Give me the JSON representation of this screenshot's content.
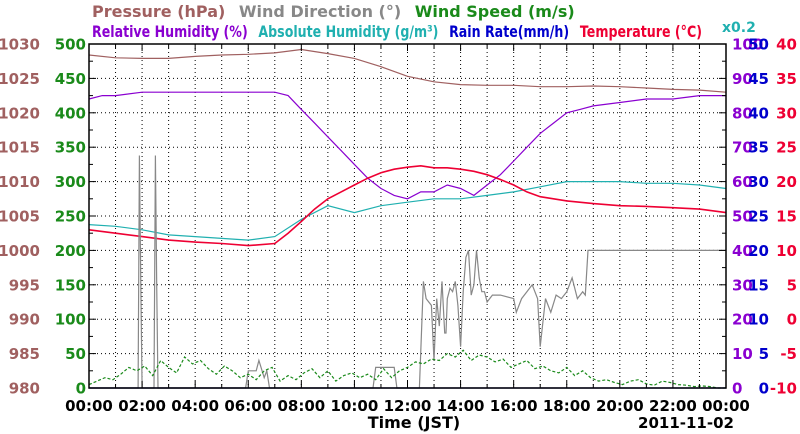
{
  "chart_data": {
    "type": "line",
    "date_label": "2011-11-02",
    "xlabel": "Time (JST)",
    "x_ticks": [
      "00:00",
      "02:00",
      "04:00",
      "06:00",
      "08:00",
      "10:00",
      "12:00",
      "14:00",
      "16:00",
      "18:00",
      "20:00",
      "22:00",
      "00:00"
    ],
    "xlim": [
      0,
      24
    ],
    "legend": {
      "row1": [
        {
          "id": "pressure",
          "text": "Pressure (hPa)",
          "color": "#a06060"
        },
        {
          "id": "wind_dir",
          "text": "Wind Direction (°)",
          "color": "#888888"
        },
        {
          "id": "wind_speed",
          "text": "Wind Speed (m/s)",
          "color": "#1a8a1a"
        }
      ],
      "row2": [
        {
          "id": "rh",
          "text": "Relative Humidity (%)",
          "color": "#8a00d0"
        },
        {
          "id": "ah",
          "text": "Absolute Humidity (g/m³)",
          "color": "#20b0b0"
        },
        {
          "id": "rain",
          "text": "Rain Rate(mm/h)",
          "color": "#0000cc"
        },
        {
          "id": "temp",
          "text": "Temperature (°C)",
          "color": "#ee0033"
        }
      ],
      "ah_factor": "x0.2"
    },
    "axes": {
      "pressure": {
        "ticks": [
          "1030",
          "1025",
          "1020",
          "1015",
          "1010",
          "1005",
          "1000",
          "995",
          "990",
          "985",
          "980"
        ],
        "ylim": [
          980,
          1030
        ],
        "color": "#a06060"
      },
      "wind_dir": {
        "ticks": [
          "500",
          "450",
          "400",
          "350",
          "300",
          "250",
          "200",
          "150",
          "100",
          "50",
          "0"
        ],
        "ylim": [
          0,
          500
        ],
        "color": "#1a8a1a"
      },
      "rh": {
        "ticks": [
          "100",
          "90",
          "80",
          "70",
          "60",
          "50",
          "40",
          "30",
          "20",
          "10",
          "0"
        ],
        "ylim": [
          0,
          100
        ],
        "color": "#8a00d0"
      },
      "rain": {
        "ticks": [
          "50",
          "45",
          "40",
          "35",
          "30",
          "25",
          "20",
          "15",
          "10",
          "5",
          "0"
        ],
        "ylim": [
          0,
          50
        ],
        "color": "#0000cc"
      },
      "temp": {
        "ticks": [
          "40",
          "35",
          "30",
          "25",
          "20",
          "15",
          "10",
          "5",
          "0",
          "-5",
          "-10"
        ],
        "ylim": [
          -10,
          40
        ],
        "color": "#ee0033"
      }
    },
    "series": [
      {
        "name": "Pressure (hPa)",
        "color": "#a06060",
        "axis": "pressure",
        "x": [
          0,
          1,
          2,
          3,
          4,
          5,
          6,
          7,
          8,
          9,
          10,
          11,
          12,
          13,
          14,
          15,
          16,
          17,
          18,
          19,
          20,
          21,
          22,
          23,
          24
        ],
        "y": [
          1028.4,
          1028.0,
          1027.9,
          1027.9,
          1028.2,
          1028.4,
          1028.5,
          1028.7,
          1029.2,
          1028.6,
          1027.9,
          1026.7,
          1025.3,
          1024.5,
          1024.1,
          1024.0,
          1024.0,
          1023.8,
          1023.8,
          1023.9,
          1023.8,
          1023.6,
          1023.4,
          1023.3,
          1023.0
        ]
      },
      {
        "name": "Relative Humidity (%)",
        "color": "#8a00d0",
        "axis": "rh",
        "x": [
          0,
          0.5,
          1,
          2,
          3,
          4,
          5,
          6,
          7,
          7.5,
          8,
          8.5,
          9,
          9.5,
          10,
          10.5,
          11,
          11.5,
          12,
          12.5,
          13,
          13.5,
          14,
          14.5,
          15,
          15.5,
          16,
          16.5,
          17,
          17.5,
          18,
          18.5,
          19,
          20,
          21,
          22,
          23,
          24
        ],
        "y": [
          84,
          85,
          85,
          86,
          86,
          86,
          86,
          86,
          86,
          85,
          81,
          77,
          73,
          69,
          65,
          61,
          58,
          56,
          55,
          57,
          57,
          59,
          58,
          56,
          59,
          62,
          66,
          70,
          74,
          77,
          80,
          81,
          82,
          83,
          84,
          84,
          85,
          85
        ]
      },
      {
        "name": "Absolute Humidity (g/m³)",
        "color": "#20b0b0",
        "axis": "rh",
        "x": [
          0,
          1,
          2,
          3,
          4,
          5,
          6,
          7,
          8,
          9,
          10,
          11,
          12,
          13,
          14,
          15,
          16,
          17,
          18,
          19,
          20,
          21,
          22,
          23,
          24
        ],
        "y": [
          47.5,
          47,
          46,
          44.5,
          44,
          43.5,
          43,
          44,
          49,
          53,
          51,
          53,
          54,
          55,
          55,
          56,
          57,
          58.5,
          60,
          60,
          60,
          59.5,
          59.5,
          59,
          58
        ]
      },
      {
        "name": "Temperature (°C)",
        "color": "#ee0033",
        "axis": "temp",
        "x": [
          0,
          1,
          2,
          3,
          4,
          5,
          6,
          7,
          7.5,
          8,
          8.5,
          9,
          9.5,
          10,
          10.5,
          11,
          11.5,
          12,
          12.5,
          13,
          13.5,
          14,
          14.5,
          15,
          15.5,
          16,
          16.5,
          17,
          17.5,
          18,
          19,
          20,
          21,
          22,
          23,
          24
        ],
        "y": [
          13,
          12.5,
          12,
          11.5,
          11.2,
          11.0,
          10.7,
          11.0,
          12.5,
          14.2,
          16.0,
          17.5,
          18.5,
          19.5,
          20.5,
          21.3,
          21.8,
          22.1,
          22.3,
          22.0,
          22.0,
          21.8,
          21.5,
          21.0,
          20.3,
          19.5,
          18.5,
          17.8,
          17.5,
          17.2,
          16.8,
          16.5,
          16.4,
          16.2,
          16.0,
          15.5
        ]
      },
      {
        "name": "Wind Direction (°)",
        "color": "#888888",
        "axis": "wind_dir",
        "x": [
          0,
          1.8,
          1.85,
          1.9,
          1.95,
          2.0,
          2.4,
          2.45,
          2.5,
          2.55,
          2.6,
          2.7,
          5.9,
          6.0,
          6.3,
          6.4,
          6.6,
          6.7,
          6.8,
          6.9,
          7.0,
          10.0,
          10.1,
          10.7,
          10.8,
          11.5,
          11.6,
          12.4,
          12.45,
          12.6,
          12.7,
          12.9,
          13.0,
          13.1,
          13.2,
          13.3,
          13.4,
          13.45,
          13.5,
          13.6,
          13.7,
          13.8,
          13.9,
          14.0,
          14.1,
          14.2,
          14.3,
          14.4,
          14.5,
          14.6,
          14.7,
          14.8,
          14.9,
          15.0,
          15.2,
          15.5,
          16.0,
          16.1,
          16.3,
          16.5,
          16.7,
          16.9,
          17.0,
          17.2,
          17.4,
          17.6,
          17.8,
          18.0,
          18.2,
          18.4,
          18.6,
          18.7,
          18.8,
          24
        ],
        "y": [
          0,
          0,
          0,
          338,
          150,
          0,
          0,
          0,
          338,
          150,
          0,
          0,
          0,
          25,
          25,
          40,
          15,
          25,
          0,
          0,
          0,
          0,
          0,
          0,
          30,
          30,
          0,
          0,
          0,
          155,
          130,
          120,
          40,
          130,
          90,
          155,
          80,
          80,
          130,
          145,
          140,
          155,
          120,
          60,
          140,
          190,
          200,
          135,
          150,
          200,
          160,
          140,
          140,
          125,
          135,
          135,
          130,
          110,
          130,
          140,
          150,
          130,
          60,
          130,
          110,
          135,
          130,
          140,
          160,
          130,
          140,
          135,
          200,
          200
        ]
      },
      {
        "name": "Wind Speed (m/s)",
        "color": "#1a8a1a",
        "axis": "wind_dir",
        "dash": true,
        "x": [
          0,
          0.3,
          0.6,
          0.9,
          1.2,
          1.5,
          1.8,
          2.1,
          2.4,
          2.7,
          3.0,
          3.3,
          3.6,
          3.9,
          4.2,
          4.5,
          4.8,
          5.1,
          5.4,
          5.7,
          6.0,
          6.3,
          6.6,
          6.9,
          7.2,
          7.5,
          7.8,
          8.1,
          8.4,
          8.7,
          9.0,
          9.3,
          9.6,
          9.9,
          10.2,
          10.5,
          10.8,
          11.1,
          11.4,
          11.7,
          12.0,
          12.3,
          12.6,
          12.9,
          13.2,
          13.5,
          13.8,
          14.1,
          14.4,
          14.7,
          15.0,
          15.3,
          15.6,
          15.9,
          16.2,
          16.5,
          16.8,
          17.1,
          17.4,
          17.7,
          18.0,
          18.3,
          18.6,
          18.9,
          19.2,
          19.5,
          19.8,
          20.1,
          20.4,
          20.7,
          21.0,
          21.3,
          21.6,
          21.9,
          22.2,
          22.5,
          22.8,
          23.1,
          23.4,
          23.7,
          24
        ],
        "y": [
          5,
          10,
          15,
          12,
          20,
          30,
          25,
          32,
          18,
          40,
          30,
          22,
          45,
          35,
          40,
          28,
          20,
          32,
          25,
          15,
          20,
          12,
          25,
          30,
          10,
          18,
          12,
          22,
          28,
          15,
          25,
          10,
          18,
          22,
          15,
          20,
          12,
          28,
          15,
          25,
          30,
          38,
          35,
          42,
          40,
          50,
          45,
          55,
          40,
          48,
          45,
          38,
          42,
          30,
          35,
          40,
          28,
          32,
          25,
          22,
          30,
          18,
          25,
          15,
          10,
          12,
          8,
          5,
          10,
          12,
          6,
          4,
          10,
          8,
          5,
          4,
          2,
          3,
          2,
          0,
          0
        ]
      },
      {
        "name": "Rain Rate(mm/h)",
        "color": "#0000cc",
        "axis": "rain",
        "x": [
          0,
          24
        ],
        "y": [
          0,
          0
        ]
      }
    ]
  }
}
